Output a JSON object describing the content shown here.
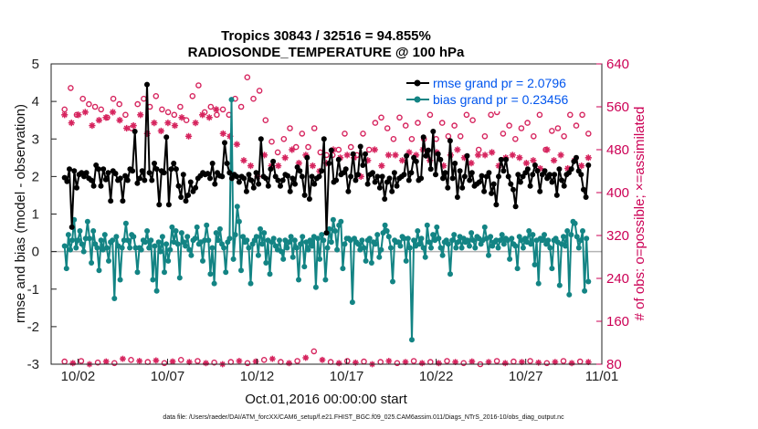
{
  "chart_data": {
    "type": "line",
    "title": "Tropics 30843 / 32516 = 94.855%",
    "subtitle": "RADIOSONDE_TEMPERATURE @ 100 hPa",
    "xlabel": "Oct.01,2016 00:00:00 start",
    "ylabel": "rmse and bias (model - observation)",
    "y2label": "# of obs: o=possible; ×=assimilated",
    "footnote": "data file: /Users/raeder/DAI/ATM_forcXX/CAM6_setup/f.e21.FHIST_BGC.f09_025.CAM6assim.011/Diags_NTrS_2016-10/obs_diag_output.nc",
    "xlim": [
      0.5,
      31.25
    ],
    "ylim": [
      -3,
      5
    ],
    "y2lim": [
      80,
      640
    ],
    "xticks": [
      2,
      7,
      12,
      17,
      22,
      27,
      32
    ],
    "xtick_labels": [
      "10/02",
      "10/07",
      "10/12",
      "10/17",
      "10/22",
      "10/27",
      "11/01"
    ],
    "yticks": [
      -3,
      -2,
      -1,
      0,
      1,
      2,
      3,
      4,
      5
    ],
    "y2ticks": [
      80,
      160,
      240,
      320,
      400,
      480,
      560,
      640
    ],
    "legend": [
      "rmse grand pr = 2.0796",
      "bias grand pr = 0.23456"
    ],
    "legend_position": "top-right",
    "colors": {
      "rmse": "#000000",
      "bias": "#138484",
      "obs": "#d6245e",
      "zero": "#b4b4b4"
    },
    "series": [
      {
        "name": "rmse",
        "values": [
          1.97,
          1.87,
          2.2,
          0.65,
          2.15,
          1.7,
          2.05,
          2.1,
          2.0,
          2.1,
          1.95,
          1.9,
          1.75,
          2.3,
          2.2,
          1.75,
          2.2,
          1.92,
          2.1,
          1.35,
          2.15,
          2.08,
          1.9,
          1.95,
          1.35,
          2.02,
          1.9,
          2.2,
          2.15,
          3.2,
          1.82,
          1.95,
          2.15,
          1.9,
          4.45,
          2.1,
          1.9,
          2.35,
          2.2,
          1.25,
          2.15,
          2.1,
          3.05,
          1.25,
          2.2,
          2.35,
          2.2,
          1.75,
          1.45,
          2.05,
          1.35,
          1.5,
          1.85,
          1.6,
          1.7,
          1.95,
          2.02,
          2.1,
          2.05,
          2.08,
          1.95,
          2.35,
          1.8,
          2.1,
          2.02,
          2.0,
          2.9,
          2.35,
          2.1,
          1.95,
          2.05,
          2.0,
          1.85,
          2.0,
          1.95,
          1.6,
          2.05,
          1.9,
          1.7,
          2.1,
          1.8,
          3.0,
          2.0,
          1.95,
          1.75,
          2.2,
          2.4,
          2.0,
          1.9,
          1.75,
          1.9,
          2.05,
          2.02,
          1.6,
          1.95,
          1.8,
          2.25,
          2.15,
          2.0,
          1.5,
          2.5,
          1.4,
          2.0,
          1.8,
          1.95,
          2.0,
          2.15,
          3.0,
          0.5,
          2.35,
          2.7,
          1.85,
          1.9,
          2.45,
          2.05,
          2.1,
          2.2,
          1.6,
          2.0,
          2.6,
          1.9,
          2.05,
          2.8,
          2.3,
          2.6,
          1.8,
          2.05,
          2.1,
          1.85,
          2.0,
          1.7,
          2.0,
          1.4,
          1.85,
          1.95,
          1.6,
          2.1,
          1.75,
          1.95,
          2.0,
          2.05,
          2.55,
          1.9,
          2.1,
          2.5,
          2.4,
          1.9,
          1.95,
          3.05,
          2.55,
          2.7,
          2.2,
          3.2,
          2.05,
          2.6,
          2.45,
          1.95,
          2.1,
          1.7,
          2.95,
          1.95,
          2.35,
          1.45,
          2.15,
          1.7,
          2.0,
          2.55,
          1.9,
          2.1,
          1.75,
          1.8,
          1.85,
          2.02,
          1.6,
          2.0,
          2.1,
          1.55,
          1.8,
          1.25,
          2.0,
          2.45,
          2.15,
          2.45,
          2.0,
          1.8,
          1.65,
          1.2,
          2.05,
          1.85,
          2.0,
          2.1,
          2.2,
          1.75,
          2.05,
          2.3,
          2.15,
          1.6,
          2.05,
          2.15,
          1.95,
          2.05,
          1.85,
          2.05,
          1.5,
          2.2,
          1.9,
          1.75,
          2.05,
          2.1,
          2.2,
          2.4,
          2.5,
          2.15,
          2.05,
          1.65,
          1.45,
          2.3
        ]
      },
      {
        "name": "bias",
        "values": [
          0.15,
          -0.45,
          0.45,
          0.05,
          0.3,
          0.85,
          0.1,
          0.3,
          0.55,
          0.2,
          0.0,
          0.35,
          0.8,
          0.35,
          -0.3,
          0.55,
          0.2,
          0.1,
          -0.5,
          0.3,
          0.05,
          0.45,
          0.1,
          -0.25,
          0.25,
          0.3,
          -1.25,
          0.4,
          0.15,
          -0.75,
          0.1,
          0.3,
          0.75,
          0.3,
          0.1,
          0.45,
          0.4,
          0.1,
          -0.55,
          0.1,
          0.05,
          0.3,
          0.25,
          0.55,
          0.1,
          0.3,
          -0.75,
          0.15,
          -1.05,
          0.25,
          0.0,
          0.4,
          -0.55,
          0.2,
          -0.25,
          0.05,
          0.65,
          0.25,
          0.55,
          0.2,
          -0.7,
          0.5,
          0.25,
          0.15,
          0.4,
          0.05,
          -0.1,
          0.3,
          0.35,
          0.65,
          0.2,
          0.25,
          -0.25,
          0.3,
          0.7,
          0.3,
          -0.6,
          0.1,
          -0.85,
          0.5,
          0.3,
          0.6,
          0.2,
          0.1,
          -0.55,
          0.25,
          0.35,
          4.05,
          -0.2,
          0.45,
          1.2,
          0.8,
          -0.5,
          0.4,
          0.25,
          0.3,
          0.1,
          -0.85,
          0.2,
          0.3,
          0.4,
          -0.1,
          0.6,
          0.2,
          0.5,
          -0.3,
          0.3,
          -0.6,
          0.25,
          0.35,
          0.15,
          0.05,
          0.3,
          0.0,
          -0.2,
          0.3,
          0.1,
          0.25,
          0.4,
          -0.15,
          0.3,
          0.1,
          -0.75,
          0.2,
          0.4,
          -0.4,
          0.25,
          0.05,
          0.3,
          0.15,
          0.4,
          -0.95,
          0.35,
          -0.2,
          0.45,
          0.3,
          -0.75,
          0.1,
          0.6,
          0.25,
          0.85,
          0.55,
          0.05,
          0.7,
          0.8,
          -0.45,
          0.2,
          0.35,
          0.35,
          0.3,
          -1.35,
          0.35,
          0.25,
          0.2,
          0.05,
          0.3,
          0.1,
          -0.25,
          0.3,
          0.35,
          -0.3,
          0.25,
          0.2,
          0.45,
          -0.15,
          0.05,
          0.5,
          0.7,
          0.55,
          0.4,
          0.1,
          -0.8,
          0.3,
          0.25,
          0.25,
          0.15,
          0.4,
          0.35,
          -0.25,
          0.35,
          0.1,
          -2.35,
          0.3,
          0.15,
          0.55,
          0.2,
          0.35,
          0.1,
          -0.15,
          0.7,
          0.25,
          0.1,
          0.45,
          0.3,
          0.65,
          0.35,
          0.1,
          -0.1,
          0.25,
          0.3,
          0.2,
          -0.6,
          0.3,
          0.45,
          0.1,
          0.25,
          0.4,
          0.1,
          0.35,
          0.25,
          0.3,
          0.15,
          0.5,
          0.3,
          0.1,
          0.4,
          0.35,
          0.2,
          0.3,
          0.65,
          0.35,
          -0.1,
          0.4,
          0.15,
          0.25,
          0.3,
          0.1,
          0.3,
          0.45,
          0.2,
          0.35,
          0.3,
          -0.2,
          0.35,
          0.2,
          0.15,
          -0.45,
          0.4,
          0.3,
          0.1,
          0.35,
          0.25,
          0.55,
          0.2,
          0.45,
          -0.35,
          0.3,
          -0.85,
          0.35,
          0.3,
          0.45,
          0.2,
          0.3,
          0.1,
          -0.45,
          0.3,
          0.35,
          0.25,
          -0.9,
          0.2,
          0.4,
          0.15,
          0.55,
          -1.15,
          0.45,
          0.8,
          0.75,
          0.4,
          0.1,
          0.3,
          0.55,
          -1.05,
          0.35,
          -0.8
        ]
      },
      {
        "name": "obs possible",
        "marker": "o",
        "values": [
          555,
          595,
          545,
          575,
          565,
          560,
          555,
          540,
          575,
          565,
          545,
          520,
          565,
          575,
          560,
          580,
          555,
          550,
          545,
          560,
          535,
          580,
          600,
          550,
          560,
          545,
          555,
          545,
          575,
          560,
          615,
          575,
          590,
          535,
          495,
          475,
          500,
          520,
          485,
          510,
          485,
          520,
          475,
          470,
          470,
          480,
          510,
          485,
          470,
          510,
          480,
          530,
          540,
          520,
          500,
          540,
          525,
          500,
          530,
          500,
          545,
          500,
          530,
          505,
          525,
          505,
          545,
          535,
          480,
          505,
          545,
          550,
          510,
          525,
          500,
          520,
          530,
          505,
          545,
          480,
          515,
          520,
          505,
          545,
          525,
          545,
          510
        ]
      },
      {
        "name": "obs assimilated",
        "marker": "x",
        "values": [
          545,
          530,
          545,
          550,
          525,
          535,
          540,
          550,
          535,
          520,
          525,
          545,
          510,
          530,
          515,
          530,
          525,
          540,
          505,
          530,
          545,
          540,
          555,
          510,
          505,
          490,
          460,
          450,
          430,
          470,
          450,
          450,
          465,
          480,
          455,
          470,
          450,
          440,
          455,
          480,
          465,
          470,
          465,
          430,
          460,
          480,
          450,
          470,
          470,
          460,
          475,
          470,
          480,
          460,
          475,
          450,
          470,
          480,
          465,
          455,
          470,
          470,
          475,
          450,
          465,
          470,
          465,
          455,
          460,
          445,
          480,
          460,
          470,
          445,
          460,
          450,
          465
        ]
      },
      {
        "name": "obs low",
        "marker": "mixed",
        "values": [
          85,
          82,
          86,
          80,
          83,
          85,
          82,
          90,
          88,
          86,
          84,
          87,
          82,
          85,
          88,
          84,
          86,
          82,
          83,
          80,
          84,
          86,
          82,
          85,
          88,
          90,
          84,
          82,
          86,
          92,
          104,
          88,
          84,
          82,
          86,
          83,
          85,
          80,
          84,
          86,
          82,
          84,
          86,
          82,
          84,
          82,
          86,
          84,
          82,
          85,
          80,
          84,
          86,
          82,
          85,
          84,
          86,
          83,
          82,
          84,
          86,
          82,
          85,
          84
        ]
      }
    ]
  }
}
